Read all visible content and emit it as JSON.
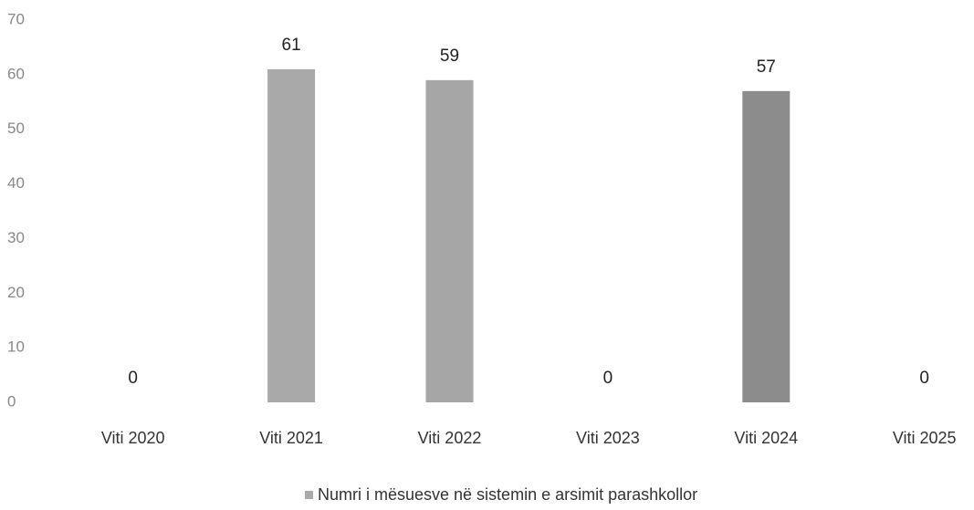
{
  "chart_data": {
    "type": "bar",
    "categories": [
      "Viti 2020",
      "Viti 2021",
      "Viti 2022",
      "Viti 2023",
      "Viti 2024",
      "Viti 2025"
    ],
    "series": [
      {
        "name": "Numri i mësuesve në sistemin e arsimit parashkollor",
        "color": "#a9a9a9",
        "colors": [
          "#a9a9a9",
          "#a9a9a9",
          "#a6a6a6",
          "#a9a9a9",
          "#8c8c8c",
          "#a9a9a9"
        ],
        "values": [
          0,
          61,
          59,
          0,
          57,
          0
        ]
      }
    ],
    "ylim": [
      0,
      70
    ],
    "yticks": [
      0,
      10,
      20,
      30,
      40,
      50,
      60,
      70
    ],
    "grid": false,
    "legend": "bottom"
  }
}
